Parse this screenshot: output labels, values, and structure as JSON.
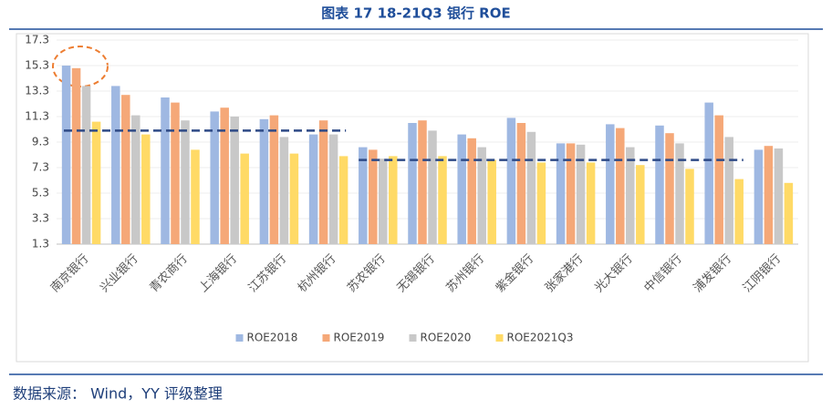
{
  "chart_data": {
    "type": "bar",
    "title": "图表 17 18-21Q3 银行 ROE",
    "categories": [
      "南京银行",
      "兴业银行",
      "青农商行",
      "上海银行",
      "江苏银行",
      "杭州银行",
      "苏农银行",
      "无锡银行",
      "苏州银行",
      "紫金银行",
      "张家港行",
      "光大银行",
      "中信银行",
      "浦发银行",
      "江阴银行"
    ],
    "series": [
      {
        "name": "ROE2018",
        "color": "#9fb8e2",
        "values": [
          15.3,
          13.7,
          12.8,
          11.7,
          11.1,
          9.9,
          8.9,
          10.8,
          9.9,
          11.2,
          9.2,
          10.7,
          10.6,
          12.4,
          8.7
        ]
      },
      {
        "name": "ROE2019",
        "color": "#f5a878",
        "values": [
          15.1,
          13.0,
          12.4,
          12.0,
          11.4,
          11.0,
          8.7,
          11.0,
          9.6,
          10.8,
          9.2,
          10.4,
          10.0,
          11.4,
          9.0
        ]
      },
      {
        "name": "ROE2020",
        "color": "#c8c8c8",
        "values": [
          13.7,
          11.4,
          11.0,
          11.3,
          9.7,
          9.9,
          8.0,
          10.2,
          8.9,
          10.1,
          9.1,
          8.9,
          9.2,
          9.7,
          8.8
        ]
      },
      {
        "name": "ROE2021Q3",
        "color": "#ffda66",
        "values": [
          10.9,
          9.9,
          8.7,
          8.4,
          8.4,
          8.2,
          8.2,
          8.2,
          7.9,
          7.7,
          7.7,
          7.5,
          7.2,
          6.4,
          6.1
        ]
      }
    ],
    "reference_lines": [
      {
        "value": 10.2,
        "color": "#2e4a86"
      },
      {
        "value": 7.9,
        "color": "#2e4a86"
      }
    ],
    "ylim": [
      1.3,
      17.3
    ],
    "yticks": [
      1.3,
      3.3,
      5.3,
      7.3,
      9.3,
      11.3,
      13.3,
      15.3,
      17.3
    ],
    "grid": true,
    "legend": "bottom",
    "source": "数据来源： Wind，YY 评级整理"
  }
}
